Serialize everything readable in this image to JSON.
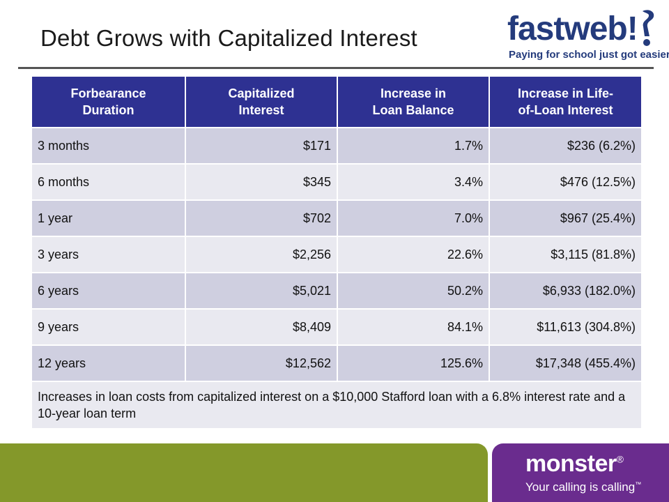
{
  "slide": {
    "title": "Debt Grows with Capitalized Interest"
  },
  "fastweb_logo": {
    "word": "fastweb",
    "mark": "!",
    "tagline": "Paying for school just got easier"
  },
  "table": {
    "headers": [
      [
        "Forbearance",
        "Duration"
      ],
      [
        "Capitalized",
        "Interest"
      ],
      [
        "Increase in",
        "Loan Balance"
      ],
      [
        "Increase in Life-",
        "of-Loan Interest"
      ]
    ],
    "rows": [
      [
        "3 months",
        "$171",
        "1.7%",
        "$236 (6.2%)"
      ],
      [
        "6 months",
        "$345",
        "3.4%",
        "$476 (12.5%)"
      ],
      [
        "1 year",
        "$702",
        "7.0%",
        "$967 (25.4%)"
      ],
      [
        "3 years",
        "$2,256",
        "22.6%",
        "$3,115 (81.8%)"
      ],
      [
        "6 years",
        "$5,021",
        "50.2%",
        "$6,933 (182.0%)"
      ],
      [
        "9 years",
        "$8,409",
        "84.1%",
        "$11,613 (304.8%)"
      ],
      [
        "12 years",
        "$12,562",
        "125.6%",
        "$17,348 (455.4%)"
      ]
    ],
    "footnote": "Increases in loan costs from capitalized interest on a $10,000 Stafford loan with a 6.8% interest rate and a 10-year loan term"
  },
  "monster_logo": {
    "word": "monster",
    "mark": "®",
    "tagline": "Your calling is calling",
    "tm": "™"
  },
  "colors": {
    "header_bg": "#2e3192",
    "row_dark": "#cfcfe0",
    "row_light": "#e9e9f0",
    "band_green": "#84982a",
    "band_purple": "#6a2c8e",
    "fastweb_blue": "#243b7c"
  }
}
